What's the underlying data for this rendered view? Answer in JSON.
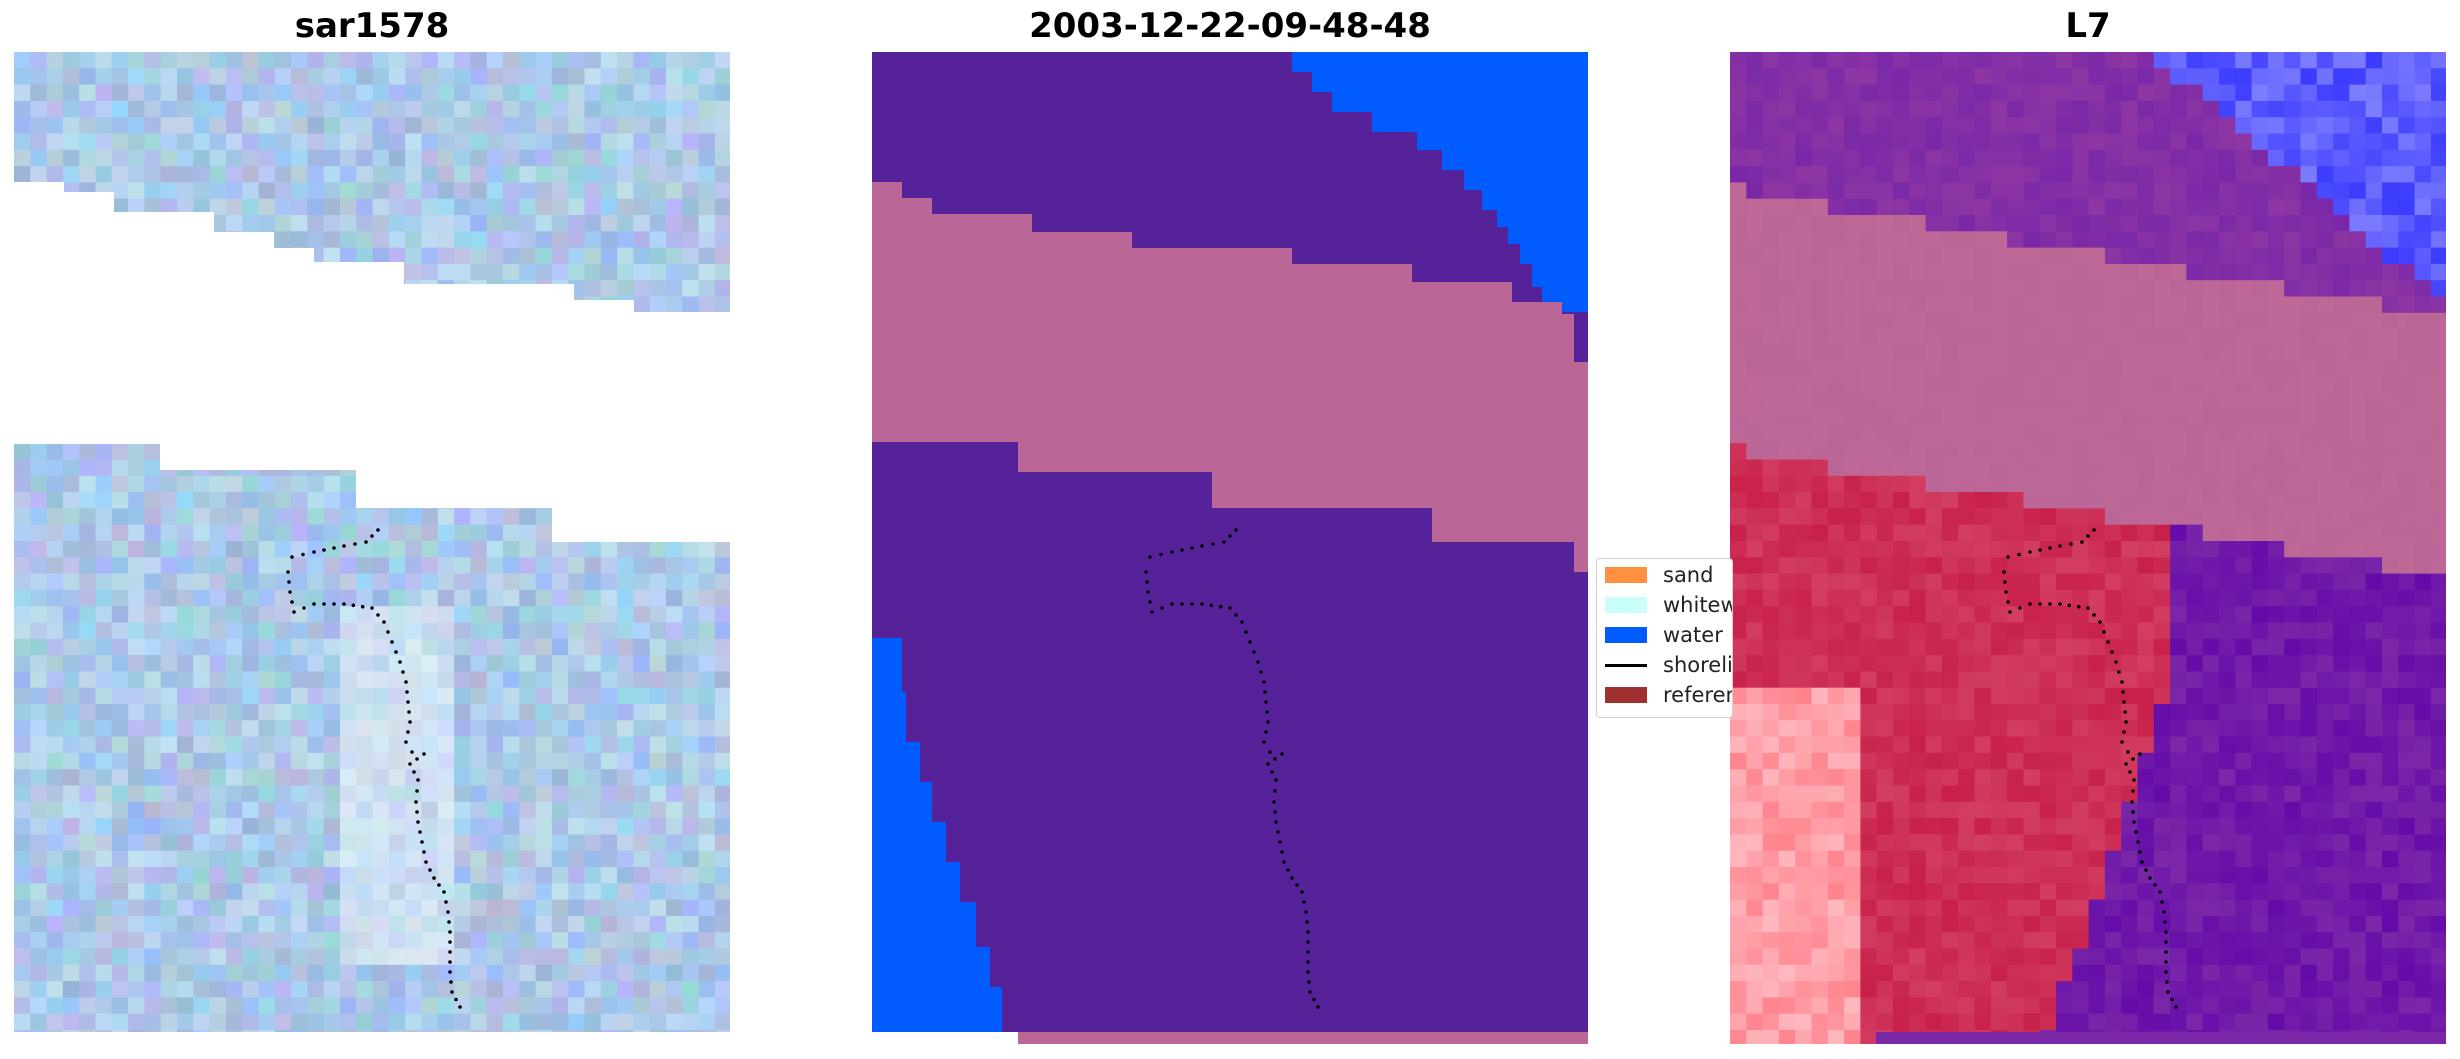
{
  "panels": [
    {
      "title": "sar1578"
    },
    {
      "title": "2003-12-22-09-48-48"
    },
    {
      "title": "L7"
    }
  ],
  "legend": {
    "items": [
      {
        "label": "sand",
        "color": "#ff9040",
        "kind": "patch"
      },
      {
        "label": "whitewater",
        "color": "#c8fff8",
        "kind": "patch"
      },
      {
        "label": "water",
        "color": "#005cff",
        "kind": "patch"
      },
      {
        "label": "shoreline",
        "color": "#000000",
        "kind": "line"
      },
      {
        "label": "reference shoreline",
        "color": "#a03030",
        "kind": "patch"
      }
    ]
  },
  "colors": {
    "class_purple": "#55229a",
    "class_pink": "#ba6696",
    "class_water": "#005cff",
    "sar_base": "#a9c7e8",
    "l7_red": "#c8204a",
    "l7_purple": "#7a28a8",
    "l7_blue": "#3c3cff",
    "shoreline_dots": "#000000"
  }
}
